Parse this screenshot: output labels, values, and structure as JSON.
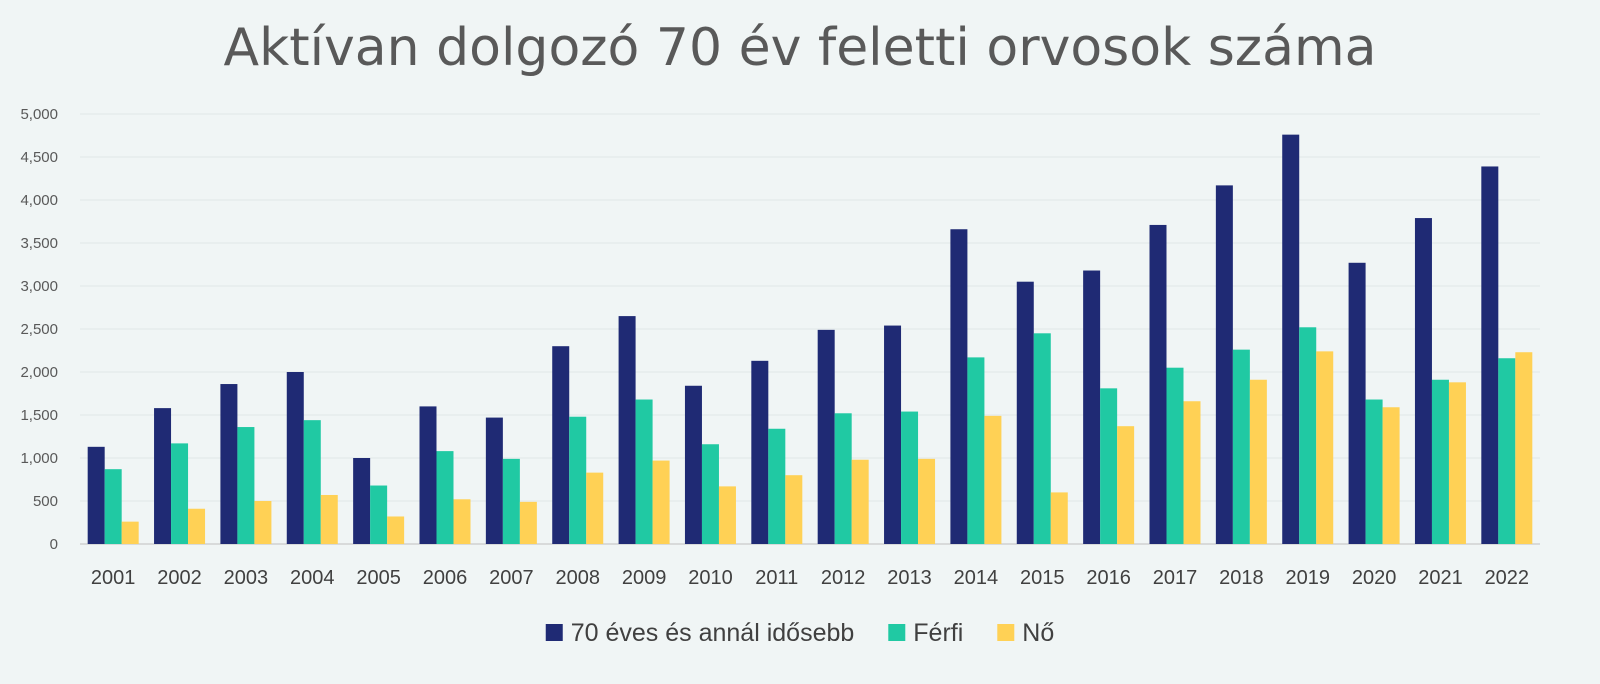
{
  "chart_data": {
    "type": "bar",
    "title": "Aktívan dolgozó 70 év feletti orvosok száma",
    "categories": [
      "2001",
      "2002",
      "2003",
      "2004",
      "2005",
      "2006",
      "2007",
      "2008",
      "2009",
      "2010",
      "2011",
      "2012",
      "2013",
      "2014",
      "2015",
      "2016",
      "2017",
      "2018",
      "2019",
      "2020",
      "2021",
      "2022"
    ],
    "series": [
      {
        "name": "70 éves és annál idősebb",
        "color": "#1f2a74",
        "values": [
          1130,
          1580,
          1860,
          2000,
          1000,
          1600,
          1470,
          2300,
          2650,
          1840,
          2130,
          2490,
          2540,
          3660,
          3050,
          3180,
          3710,
          4170,
          4760,
          3270,
          3790,
          4390
        ]
      },
      {
        "name": "Férfi",
        "color": "#20c9a3",
        "values": [
          870,
          1170,
          1360,
          1440,
          680,
          1080,
          990,
          1480,
          1680,
          1160,
          1340,
          1520,
          1540,
          2170,
          2450,
          1810,
          2050,
          2260,
          2520,
          1680,
          1910,
          2160
        ]
      },
      {
        "name": "Nő",
        "color": "#ffd155",
        "values": [
          260,
          410,
          500,
          570,
          320,
          520,
          490,
          830,
          970,
          670,
          800,
          980,
          990,
          1490,
          600,
          1370,
          1660,
          1910,
          2240,
          1590,
          1880,
          2230
        ]
      }
    ],
    "yticks": [
      "0",
      "500",
      "1,000",
      "1,500",
      "2,000",
      "2,500",
      "3,000",
      "3,500",
      "4,000",
      "4,500",
      "5,000"
    ],
    "ylim": [
      0,
      5000
    ],
    "grid": true,
    "legend_position": "bottom"
  }
}
